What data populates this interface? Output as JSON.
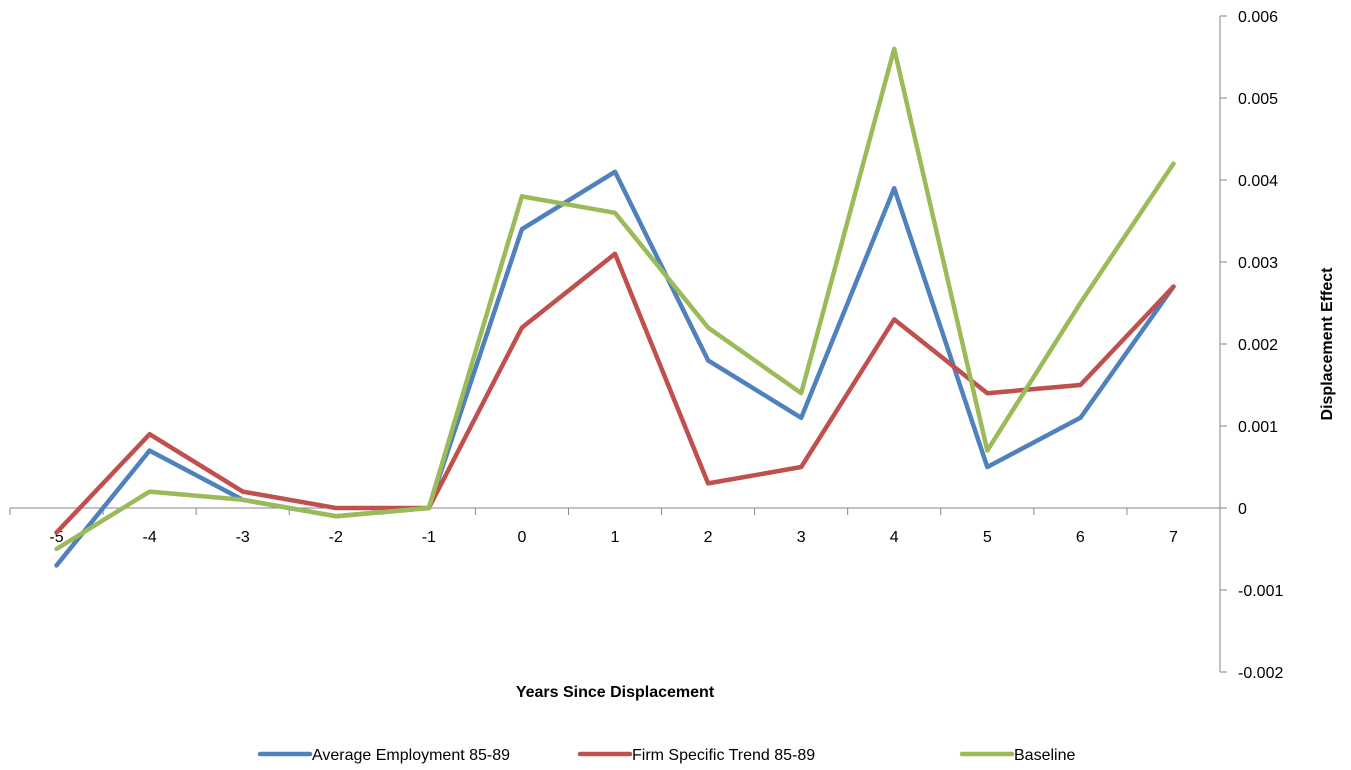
{
  "chart_data": {
    "type": "line",
    "title": "",
    "xlabel": "Years Since Displacement",
    "ylabel": "Displacement Effect",
    "categories": [
      "-5",
      "-4",
      "-3",
      "-2",
      "-1",
      "0",
      "1",
      "2",
      "3",
      "4",
      "5",
      "6",
      "7"
    ],
    "ylim": [
      -0.002,
      0.006
    ],
    "yticks": [
      "0.006",
      "0.005",
      "0.004",
      "0.003",
      "0.002",
      "0.001",
      "0",
      "-0.001",
      "-0.002"
    ],
    "ytick_values": [
      0.006,
      0.005,
      0.004,
      0.003,
      0.002,
      0.001,
      0,
      -0.001,
      -0.002
    ],
    "grid": false,
    "legend_position": "bottom",
    "y_axis_side": "right",
    "series": [
      {
        "name": "Average Employment 85-89",
        "color": "#4F81BD",
        "values": [
          -0.0007,
          0.0007,
          0.0001,
          -0.0001,
          0.0,
          0.0034,
          0.0041,
          0.0018,
          0.0011,
          0.0039,
          0.0005,
          0.0011,
          0.0027
        ]
      },
      {
        "name": "Firm Specific Trend 85-89",
        "color": "#C0504D",
        "values": [
          -0.0003,
          0.0009,
          0.0002,
          0.0,
          0.0,
          0.0022,
          0.0031,
          0.0003,
          0.0005,
          0.0023,
          0.0014,
          0.0015,
          0.0027
        ]
      },
      {
        "name": "Baseline",
        "color": "#9BBB59",
        "values": [
          -0.0005,
          0.0002,
          0.0001,
          -0.0001,
          0.0,
          0.0038,
          0.0036,
          0.0022,
          0.0014,
          0.0056,
          0.0007,
          0.0025,
          0.0042
        ]
      }
    ]
  }
}
